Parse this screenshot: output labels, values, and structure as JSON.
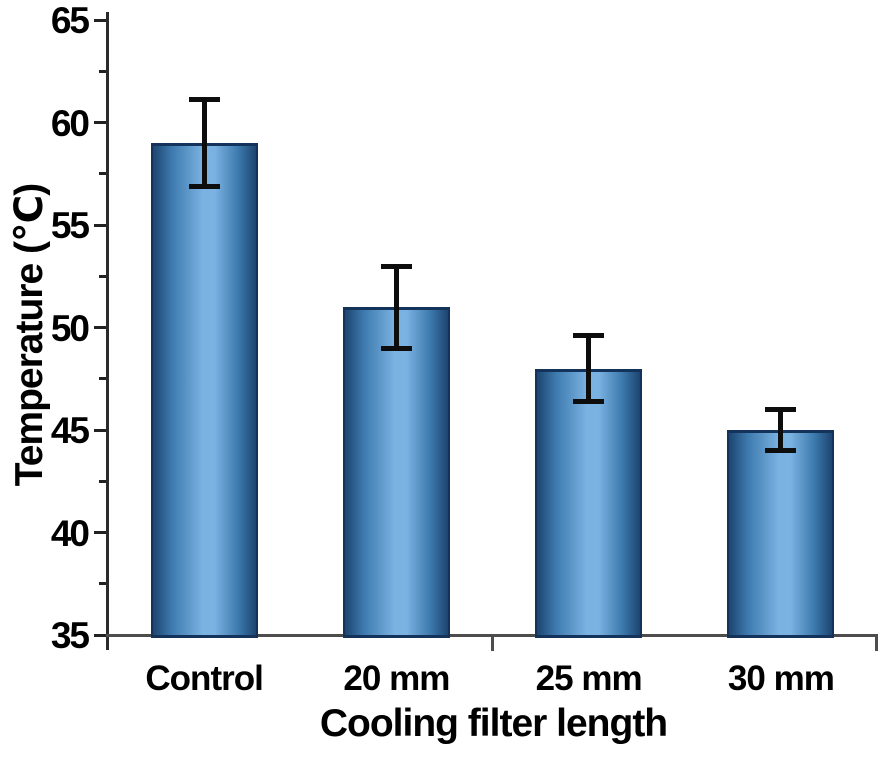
{
  "chart_data": {
    "type": "bar",
    "title": "",
    "xlabel": "Cooling filter length",
    "ylabel": "Temperature (℃)",
    "categories": [
      "Control",
      "20 mm",
      "25 mm",
      "30 mm"
    ],
    "series": [
      {
        "name": "Temperature",
        "values": [
          59,
          51,
          48,
          45
        ],
        "errors": [
          2.1,
          2.0,
          1.6,
          1.0
        ]
      }
    ],
    "ylim": [
      35,
      65
    ],
    "yticks": [
      35,
      40,
      45,
      50,
      55,
      60,
      65
    ],
    "minor_yticks": [
      37.5,
      42.5,
      47.5,
      52.5,
      57.5,
      62.5
    ],
    "grid": false,
    "legend_position": "none",
    "colors": {
      "background": "#ffffff",
      "text": "#000000",
      "axis_y": "#2b2b2b",
      "axis_x": "#4d4d4d",
      "tick": "#222222",
      "bar_center": "#7ab2e1",
      "bar_mid": "#3c79ad",
      "bar_edge": "#1d4570",
      "bar_border": "#14335a",
      "error_bar": "#0d0d0d"
    }
  }
}
